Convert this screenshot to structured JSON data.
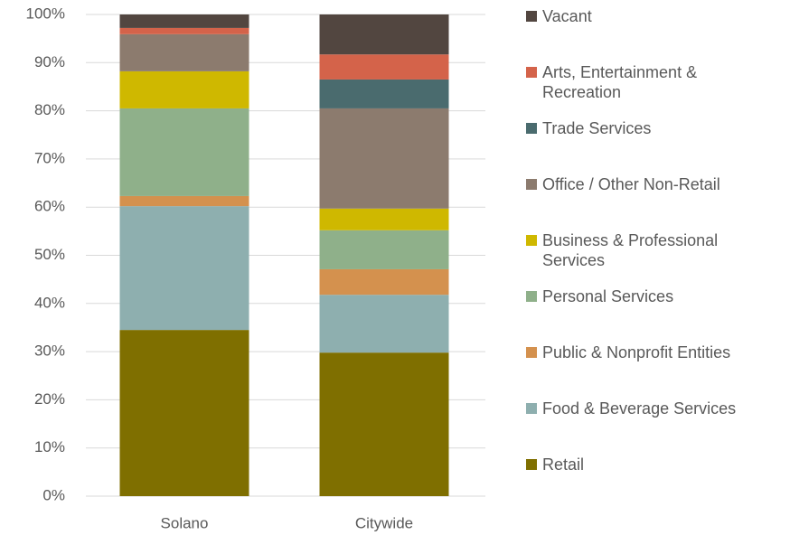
{
  "chart_data": {
    "type": "stacked_bar",
    "categories": [
      "Solano",
      "Citywide"
    ],
    "series": [
      {
        "name": "Retail",
        "color": "#7f6f00",
        "values": [
          34.5,
          29.8
        ]
      },
      {
        "name": "Food & Beverage Services",
        "color": "#8eafaf",
        "values": [
          25.7,
          12.0
        ]
      },
      {
        "name": "Public & Nonprofit Entities",
        "color": "#d4914e",
        "values": [
          2.1,
          5.3
        ]
      },
      {
        "name": "Personal Services",
        "color": "#8fb08a",
        "values": [
          18.2,
          8.1
        ]
      },
      {
        "name": "Business & Professional Services",
        "color": "#cfb800",
        "values": [
          7.7,
          4.5
        ]
      },
      {
        "name": "Office / Other Non-Retail",
        "color": "#8c7b6e",
        "values": [
          7.7,
          20.8
        ]
      },
      {
        "name": "Trade Services",
        "color": "#4a6b6e",
        "values": [
          0,
          6.0
        ]
      },
      {
        "name": "Arts, Entertainment & Recreation",
        "color": "#d4634a",
        "values": [
          1.3,
          5.2
        ]
      },
      {
        "name": "Vacant",
        "color": "#524640",
        "values": [
          2.8,
          8.3
        ]
      }
    ],
    "ylim": [
      0,
      100
    ],
    "yticks": [
      {
        "value": 0,
        "label": "0%"
      },
      {
        "value": 10,
        "label": "10%"
      },
      {
        "value": 20,
        "label": "20%"
      },
      {
        "value": 30,
        "label": "30%"
      },
      {
        "value": 40,
        "label": "40%"
      },
      {
        "value": 50,
        "label": "50%"
      },
      {
        "value": 60,
        "label": "60%"
      },
      {
        "value": 70,
        "label": "70%"
      },
      {
        "value": 80,
        "label": "80%"
      },
      {
        "value": 90,
        "label": "90%"
      },
      {
        "value": 100,
        "label": "100%"
      }
    ],
    "grid": true,
    "legend": "right"
  }
}
